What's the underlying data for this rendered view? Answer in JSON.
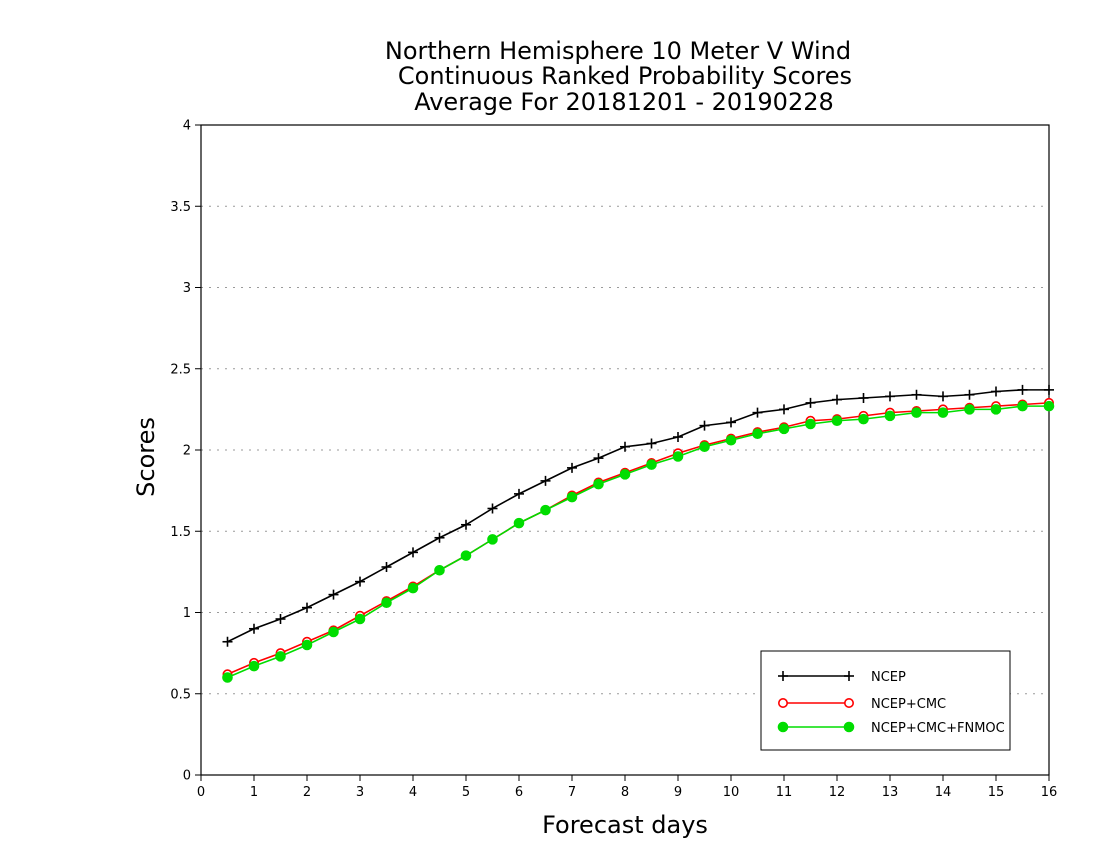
{
  "chart_data": {
    "type": "line",
    "title_lines": [
      "Northern Hemisphere 10 Meter V Wind",
      "Continuous Ranked Probability Scores",
      "Average For 20181201 - 20190228"
    ],
    "xlabel": "Forecast days",
    "ylabel": "Scores",
    "xlim": [
      0,
      16
    ],
    "ylim": [
      0,
      4
    ],
    "x_ticks": [
      0,
      1,
      2,
      3,
      4,
      5,
      6,
      7,
      8,
      9,
      10,
      11,
      12,
      13,
      14,
      15,
      16
    ],
    "x_tick_labels": [
      "0",
      "1",
      "2",
      "3",
      "4",
      "5",
      "6",
      "7",
      "8",
      "9",
      "10",
      "11",
      "12",
      "13",
      "14",
      "15",
      "16"
    ],
    "y_ticks": [
      0,
      0.5,
      1,
      1.5,
      2,
      2.5,
      3,
      3.5,
      4
    ],
    "y_tick_labels": [
      "0",
      "0.5",
      "1",
      "1.5",
      "2",
      "2.5",
      "3",
      "3.5",
      "4"
    ],
    "grid": "horizontal dotted",
    "legend_position": "bottom-right",
    "x": [
      0.5,
      1,
      1.5,
      2,
      2.5,
      3,
      3.5,
      4,
      4.5,
      5,
      5.5,
      6,
      6.5,
      7,
      7.5,
      8,
      8.5,
      9,
      9.5,
      10,
      10.5,
      11,
      11.5,
      12,
      12.5,
      13,
      13.5,
      14,
      14.5,
      15,
      15.5,
      16
    ],
    "series": [
      {
        "name": "NCEP",
        "color": "#000000",
        "marker": "plus",
        "values": [
          0.82,
          0.9,
          0.96,
          1.03,
          1.11,
          1.19,
          1.28,
          1.37,
          1.46,
          1.54,
          1.64,
          1.73,
          1.81,
          1.89,
          1.95,
          2.02,
          2.04,
          2.08,
          2.15,
          2.17,
          2.23,
          2.25,
          2.29,
          2.31,
          2.32,
          2.33,
          2.34,
          2.33,
          2.34,
          2.36,
          2.37,
          2.37
        ]
      },
      {
        "name": "NCEP+CMC",
        "color": "#ff0000",
        "marker": "open-circle",
        "values": [
          0.62,
          0.69,
          0.75,
          0.82,
          0.89,
          0.98,
          1.07,
          1.16,
          1.26,
          1.35,
          1.45,
          1.55,
          1.63,
          1.72,
          1.8,
          1.86,
          1.92,
          1.98,
          2.03,
          2.07,
          2.11,
          2.14,
          2.18,
          2.19,
          2.21,
          2.23,
          2.24,
          2.25,
          2.26,
          2.27,
          2.28,
          2.29
        ]
      },
      {
        "name": "NCEP+CMC+FNMOC",
        "color": "#00dd00",
        "marker": "filled-circle",
        "values": [
          0.6,
          0.67,
          0.73,
          0.8,
          0.88,
          0.96,
          1.06,
          1.15,
          1.26,
          1.35,
          1.45,
          1.55,
          1.63,
          1.71,
          1.79,
          1.85,
          1.91,
          1.96,
          2.02,
          2.06,
          2.1,
          2.13,
          2.16,
          2.18,
          2.19,
          2.21,
          2.23,
          2.23,
          2.25,
          2.25,
          2.27,
          2.27
        ]
      }
    ]
  }
}
